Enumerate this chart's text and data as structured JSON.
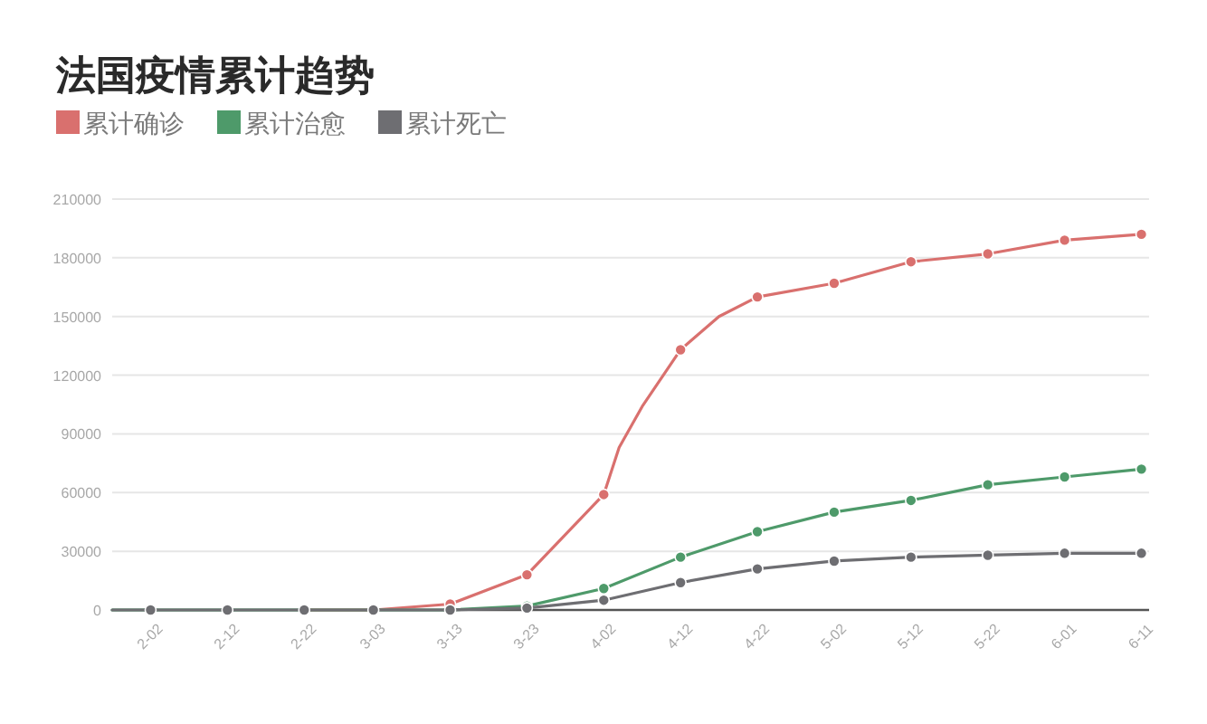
{
  "chart_data": {
    "type": "line",
    "title": "法国疫情累计趋势",
    "xlim": [
      "--01-28",
      "--06-12"
    ],
    "xticks": [
      {
        "value": "--02-02",
        "label": "2-02"
      },
      {
        "value": "--02-12",
        "label": "2-12"
      },
      {
        "value": "--02-22",
        "label": "2-22"
      },
      {
        "value": "--03-03",
        "label": "3-03"
      },
      {
        "value": "--03-13",
        "label": "3-13"
      },
      {
        "value": "--03-23",
        "label": "3-23"
      },
      {
        "value": "--04-02",
        "label": "4-02"
      },
      {
        "value": "--04-12",
        "label": "4-12"
      },
      {
        "value": "--04-22",
        "label": "4-22"
      },
      {
        "value": "--05-02",
        "label": "5-02"
      },
      {
        "value": "--05-12",
        "label": "5-12"
      },
      {
        "value": "--05-22",
        "label": "5-22"
      },
      {
        "value": "--06-01",
        "label": "6-01"
      },
      {
        "value": "--06-11",
        "label": "6-11"
      }
    ],
    "ylim": [
      0,
      210000
    ],
    "yticks": [
      0,
      30000,
      60000,
      90000,
      120000,
      150000,
      180000,
      210000
    ],
    "grid": "y",
    "legend": "top left",
    "marker": "circle",
    "series": [
      {
        "name": "累计确诊",
        "color": "#d9706e",
        "x": [
          "--02-22",
          "--03-03",
          "--03-13",
          "--03-23",
          "--04-02",
          "--04-04",
          "--04-07",
          "--04-12",
          "--04-17",
          "--04-22",
          "--05-02",
          "--05-12",
          "--05-22",
          "--06-01",
          "--06-11"
        ],
        "values": [
          0,
          0,
          3000,
          18000,
          59000,
          83000,
          104000,
          133000,
          150000,
          160000,
          167000,
          178000,
          182000,
          189000,
          192000
        ]
      },
      {
        "name": "累计治愈",
        "color": "#4e9a6a",
        "x": [
          "--01-28",
          "--02-02",
          "--02-12",
          "--02-22",
          "--03-03",
          "--03-13",
          "--03-23",
          "--04-02",
          "--04-12",
          "--04-22",
          "--05-02",
          "--05-12",
          "--05-22",
          "--06-01",
          "--06-11"
        ],
        "values": [
          0,
          0,
          0,
          0,
          0,
          0,
          2000,
          11000,
          27000,
          40000,
          50000,
          56000,
          64000,
          68000,
          72000
        ]
      },
      {
        "name": "累计死亡",
        "color": "#6e6e72",
        "x": [
          "--01-28",
          "--02-02",
          "--02-12",
          "--02-22",
          "--03-03",
          "--03-13",
          "--03-23",
          "--04-02",
          "--04-12",
          "--04-22",
          "--05-02",
          "--05-12",
          "--05-22",
          "--06-01",
          "--06-11"
        ],
        "values": [
          0,
          0,
          0,
          0,
          0,
          0,
          1000,
          5000,
          14000,
          21000,
          25000,
          27000,
          28000,
          29000,
          29000
        ]
      }
    ]
  }
}
